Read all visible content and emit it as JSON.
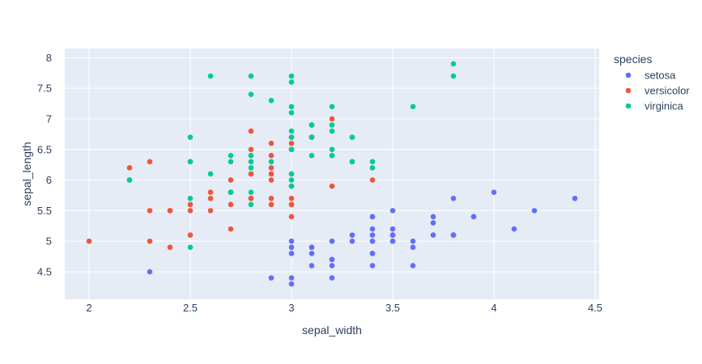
{
  "chart_data": {
    "type": "scatter",
    "title": "",
    "xlabel": "sepal_width",
    "ylabel": "sepal_length",
    "xlim": [
      1.88,
      4.52
    ],
    "ylim": [
      4.05,
      8.15
    ],
    "xticks": [
      2,
      2.5,
      3,
      3.5,
      4,
      4.5
    ],
    "xtick_labels": [
      "2",
      "2.5",
      "3",
      "3.5",
      "4",
      "4.5"
    ],
    "yticks": [
      4.5,
      5,
      5.5,
      6,
      6.5,
      7,
      7.5,
      8
    ],
    "ytick_labels": [
      "4.5",
      "5",
      "5.5",
      "6",
      "6.5",
      "7",
      "7.5",
      "8"
    ],
    "grid": true,
    "legend_title": "species",
    "legend_position": "right",
    "plot_background": "#e5ecf6",
    "series": [
      {
        "name": "setosa",
        "color": "#636efa",
        "points": [
          [
            3.5,
            5.1
          ],
          [
            3.0,
            4.9
          ],
          [
            3.2,
            4.7
          ],
          [
            3.1,
            4.6
          ],
          [
            3.6,
            5.0
          ],
          [
            3.9,
            5.4
          ],
          [
            3.4,
            4.6
          ],
          [
            3.4,
            5.0
          ],
          [
            2.9,
            4.4
          ],
          [
            3.1,
            4.9
          ],
          [
            3.7,
            5.4
          ],
          [
            3.4,
            4.8
          ],
          [
            3.0,
            4.8
          ],
          [
            3.0,
            4.3
          ],
          [
            4.0,
            5.8
          ],
          [
            4.4,
            5.7
          ],
          [
            3.9,
            5.4
          ],
          [
            3.5,
            5.1
          ],
          [
            3.8,
            5.7
          ],
          [
            3.8,
            5.1
          ],
          [
            3.4,
            5.4
          ],
          [
            3.7,
            5.1
          ],
          [
            3.6,
            4.6
          ],
          [
            3.3,
            5.1
          ],
          [
            3.4,
            4.8
          ],
          [
            3.0,
            5.0
          ],
          [
            3.4,
            5.0
          ],
          [
            3.5,
            5.2
          ],
          [
            3.4,
            5.2
          ],
          [
            3.2,
            4.7
          ],
          [
            3.1,
            4.8
          ],
          [
            3.4,
            5.4
          ],
          [
            4.1,
            5.2
          ],
          [
            4.2,
            5.5
          ],
          [
            3.1,
            4.9
          ],
          [
            3.2,
            5.0
          ],
          [
            3.5,
            5.5
          ],
          [
            3.6,
            4.9
          ],
          [
            3.0,
            4.4
          ],
          [
            3.4,
            5.1
          ],
          [
            3.5,
            5.0
          ],
          [
            2.3,
            4.5
          ],
          [
            3.2,
            4.4
          ],
          [
            3.5,
            5.0
          ],
          [
            3.8,
            5.1
          ],
          [
            3.0,
            4.8
          ],
          [
            3.8,
            5.1
          ],
          [
            3.2,
            4.6
          ],
          [
            3.7,
            5.3
          ],
          [
            3.3,
            5.0
          ]
        ]
      },
      {
        "name": "versicolor",
        "color": "#ef553b",
        "points": [
          [
            3.2,
            7.0
          ],
          [
            3.2,
            6.4
          ],
          [
            3.1,
            6.9
          ],
          [
            2.3,
            5.5
          ],
          [
            2.8,
            6.5
          ],
          [
            2.8,
            5.7
          ],
          [
            3.3,
            6.3
          ],
          [
            2.4,
            4.9
          ],
          [
            2.9,
            6.6
          ],
          [
            2.7,
            5.2
          ],
          [
            2.0,
            5.0
          ],
          [
            3.0,
            5.9
          ],
          [
            2.2,
            6.0
          ],
          [
            2.9,
            6.1
          ],
          [
            2.9,
            5.6
          ],
          [
            3.1,
            6.7
          ],
          [
            3.0,
            5.6
          ],
          [
            2.7,
            5.8
          ],
          [
            2.2,
            6.2
          ],
          [
            2.5,
            5.6
          ],
          [
            3.2,
            5.9
          ],
          [
            2.8,
            6.1
          ],
          [
            2.5,
            6.3
          ],
          [
            2.8,
            6.1
          ],
          [
            2.9,
            6.4
          ],
          [
            3.0,
            6.6
          ],
          [
            2.8,
            6.8
          ],
          [
            3.0,
            6.7
          ],
          [
            2.9,
            6.0
          ],
          [
            2.6,
            5.7
          ],
          [
            2.4,
            5.5
          ],
          [
            2.4,
            5.5
          ],
          [
            2.7,
            5.8
          ],
          [
            2.7,
            6.0
          ],
          [
            3.0,
            5.4
          ],
          [
            3.4,
            6.0
          ],
          [
            3.1,
            6.7
          ],
          [
            2.3,
            6.3
          ],
          [
            3.0,
            5.6
          ],
          [
            2.5,
            5.5
          ],
          [
            2.6,
            5.5
          ],
          [
            3.0,
            6.1
          ],
          [
            2.6,
            5.8
          ],
          [
            2.3,
            5.0
          ],
          [
            2.7,
            5.6
          ],
          [
            3.0,
            5.7
          ],
          [
            2.9,
            5.7
          ],
          [
            2.9,
            6.2
          ],
          [
            2.5,
            5.1
          ],
          [
            2.8,
            5.7
          ]
        ]
      },
      {
        "name": "virginica",
        "color": "#00cc96",
        "points": [
          [
            3.3,
            6.3
          ],
          [
            2.7,
            5.8
          ],
          [
            3.0,
            7.1
          ],
          [
            2.9,
            6.3
          ],
          [
            3.0,
            6.5
          ],
          [
            3.0,
            7.6
          ],
          [
            2.5,
            4.9
          ],
          [
            2.9,
            7.3
          ],
          [
            2.5,
            6.7
          ],
          [
            3.6,
            7.2
          ],
          [
            3.2,
            6.5
          ],
          [
            2.7,
            6.4
          ],
          [
            3.0,
            6.8
          ],
          [
            2.5,
            5.7
          ],
          [
            2.8,
            5.8
          ],
          [
            3.2,
            6.4
          ],
          [
            3.0,
            6.5
          ],
          [
            3.8,
            7.7
          ],
          [
            2.6,
            7.7
          ],
          [
            2.2,
            6.0
          ],
          [
            3.2,
            6.9
          ],
          [
            2.8,
            5.6
          ],
          [
            2.8,
            7.7
          ],
          [
            2.7,
            6.3
          ],
          [
            3.3,
            6.7
          ],
          [
            3.2,
            7.2
          ],
          [
            2.8,
            6.2
          ],
          [
            3.0,
            6.1
          ],
          [
            2.8,
            6.4
          ],
          [
            3.0,
            7.2
          ],
          [
            2.8,
            7.4
          ],
          [
            3.8,
            7.9
          ],
          [
            2.8,
            6.4
          ],
          [
            2.8,
            6.3
          ],
          [
            2.6,
            6.1
          ],
          [
            3.0,
            7.7
          ],
          [
            3.4,
            6.3
          ],
          [
            3.1,
            6.4
          ],
          [
            3.0,
            6.0
          ],
          [
            3.1,
            6.9
          ],
          [
            3.1,
            6.7
          ],
          [
            3.1,
            6.9
          ],
          [
            2.7,
            5.8
          ],
          [
            3.2,
            6.8
          ],
          [
            3.3,
            6.7
          ],
          [
            3.0,
            6.7
          ],
          [
            2.5,
            6.3
          ],
          [
            3.0,
            6.5
          ],
          [
            3.4,
            6.2
          ],
          [
            3.0,
            5.9
          ]
        ]
      }
    ]
  }
}
